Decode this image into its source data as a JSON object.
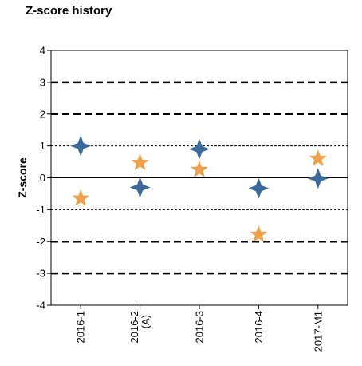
{
  "page": {
    "title": "Z-score history"
  },
  "chart_data": {
    "type": "scatter",
    "title": "Z-score history",
    "xlabel": "",
    "ylabel": "Z-score",
    "ylim": [
      -4,
      4
    ],
    "yticks": [
      -4,
      -3,
      -2,
      -1,
      0,
      1,
      2,
      3,
      4
    ],
    "categories": [
      "2016-1",
      "2016-2\n(A)",
      "2016-3",
      "2016-4",
      "2017-M1"
    ],
    "reference_lines": [
      {
        "y": 3,
        "style": "dashed-heavy"
      },
      {
        "y": 2,
        "style": "dashed-heavy"
      },
      {
        "y": 1,
        "style": "dashed-light"
      },
      {
        "y": 0,
        "style": "solid"
      },
      {
        "y": -1,
        "style": "dashed-light"
      },
      {
        "y": -2,
        "style": "dashed-heavy"
      },
      {
        "y": -3,
        "style": "dashed-heavy"
      }
    ],
    "grid": false,
    "series": [
      {
        "marker": "diamond-star",
        "color": "#3a6a9c",
        "values": [
          1.0,
          -0.3,
          0.9,
          -0.33,
          -0.02
        ]
      },
      {
        "marker": "star",
        "color": "#f0a04b",
        "values": [
          -0.65,
          0.47,
          0.25,
          -1.78,
          0.6
        ]
      }
    ]
  }
}
